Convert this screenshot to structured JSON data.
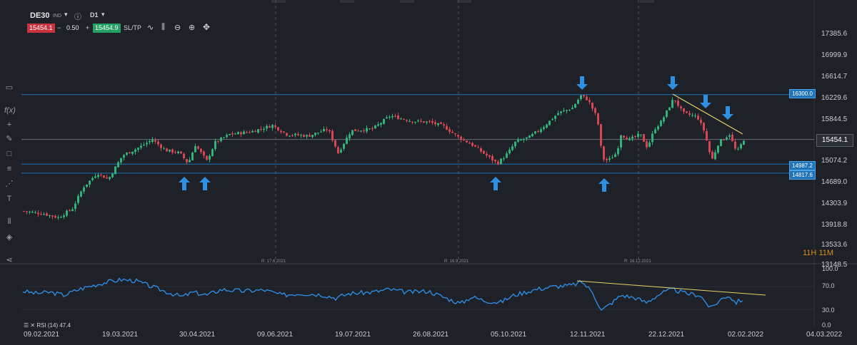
{
  "toolbar": {
    "symbol": "DE30",
    "symbol_suffix": "IND",
    "info_icon": "info-icon",
    "timeframe": "D1",
    "bid": "15454.1",
    "spread": "0.50",
    "ask": "15454.9",
    "sltp": "SL/TP",
    "minus": "−",
    "plus": "+"
  },
  "price_axis": [
    "17385.6",
    "16999.9",
    "16614.7",
    "16229.6",
    "15844.5",
    "15454.1",
    "15074.2",
    "14689.0",
    "14303.9",
    "13918.8",
    "13533.6",
    "13148.5"
  ],
  "current_price": "15454.1",
  "levels": [
    {
      "label": "16300.0",
      "value": 16300.0
    },
    {
      "label": "14987.2",
      "value": 14987.2
    },
    {
      "label": "14817.6",
      "value": 14817.6
    }
  ],
  "date_axis": [
    "09.02.2021",
    "19.03.2021",
    "30.04.2021",
    "09.06.2021",
    "19.07.2021",
    "26.08.2021",
    "05.10.2021",
    "12.11.2021",
    "22.12.2021",
    "02.02.2022",
    "04.03.2022"
  ],
  "rollovers": [
    "R: 17.6.2021",
    "R: 16.9.2021",
    "R: 16.12.2021"
  ],
  "timer": {
    "hours": "11H",
    "minutes": "11M"
  },
  "rsi": {
    "label": "RSI (14) 47.4",
    "axis": [
      "100.0",
      "70.0",
      "30.0",
      "0.0"
    ]
  },
  "colors": {
    "background": "#1e2127",
    "bull": "#2fb37a",
    "bear": "#d64552",
    "level": "#1f74b8",
    "rsi": "#2e8be0",
    "trend": "#e6d26b",
    "arrow": "#2f8fe0",
    "timer": "#d98a1f"
  },
  "sidebar_icons": [
    "chart-type-icon",
    "fx-icon",
    "crosshair-icon",
    "pencil-icon",
    "rectangle-icon",
    "fibonacci-icon",
    "pattern-icon",
    "text-icon",
    "indicators-icon",
    "layers-icon",
    "share-icon"
  ]
}
